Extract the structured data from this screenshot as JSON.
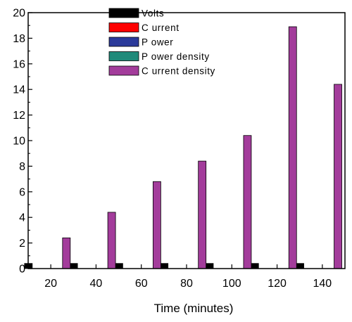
{
  "chart_data": {
    "type": "bar",
    "categories": [
      "20",
      "40",
      "60",
      "80",
      "100",
      "120",
      "140"
    ],
    "x": [
      20,
      40,
      60,
      80,
      100,
      120,
      140
    ],
    "series": [
      {
        "name": "Volts",
        "values": [
          0.4,
          0.4,
          0.4,
          0.4,
          0.4,
          0.4,
          0.4
        ],
        "color": "#000000"
      },
      {
        "name": "C urrent",
        "values": [
          0,
          0,
          0,
          0,
          0,
          0,
          0
        ],
        "color": "#ff0000"
      },
      {
        "name": "P ower",
        "values": [
          0,
          0,
          0,
          0,
          0,
          0,
          0
        ],
        "color": "#2b3a9a"
      },
      {
        "name": "P ower density",
        "values": [
          0,
          0,
          0,
          0,
          0,
          0,
          0
        ],
        "color": "#1f8a7a"
      },
      {
        "name": "C urrent density",
        "values": [
          2.4,
          4.4,
          6.8,
          8.4,
          10.4,
          18.9,
          14.4
        ],
        "color": "#a33c9b"
      }
    ],
    "xlabel": "Time (minutes)",
    "ylabel": "",
    "xlim": [
      10,
      150
    ],
    "ylim": [
      0,
      20
    ],
    "yticks": [
      "0",
      "2",
      "4",
      "6",
      "8",
      "10",
      "12",
      "14",
      "16",
      "18",
      "20"
    ],
    "xticks": [
      "20",
      "40",
      "60",
      "80",
      "100",
      "120",
      "140"
    ],
    "grid": false,
    "legend_position": "top-center"
  }
}
